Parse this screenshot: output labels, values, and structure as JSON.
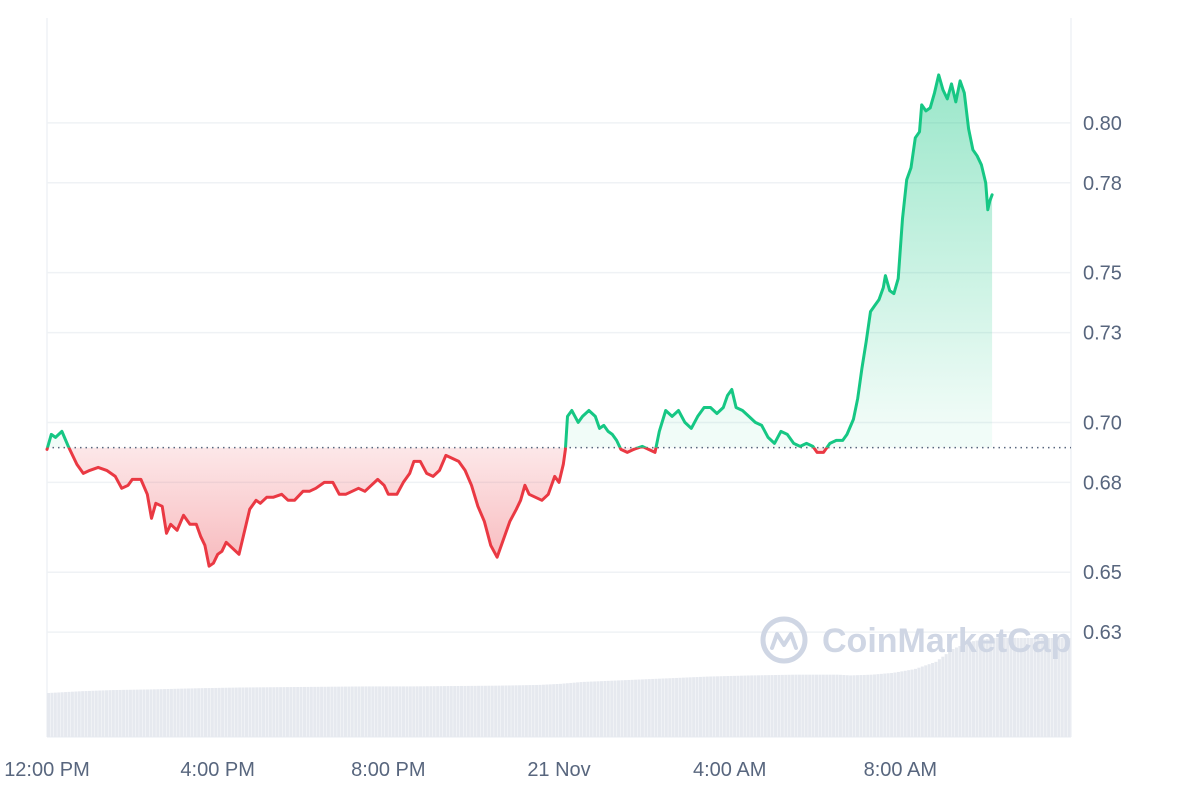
{
  "chart_data": {
    "type": "area",
    "baseline": 0.6916,
    "ylim": [
      0.595,
      0.835
    ],
    "y_ticks": [
      0.63,
      0.65,
      0.68,
      0.7,
      0.73,
      0.75,
      0.78,
      0.8
    ],
    "y_tick_labels": [
      "0.63",
      "0.65",
      "0.68",
      "0.70",
      "0.73",
      "0.75",
      "0.78",
      "0.80"
    ],
    "x_ticks": [
      {
        "label": "12:00 PM",
        "hour": 0
      },
      {
        "label": "4:00 PM",
        "hour": 4
      },
      {
        "label": "8:00 PM",
        "hour": 8
      },
      {
        "label": "21 Nov",
        "hour": 12
      },
      {
        "label": "4:00 AM",
        "hour": 16
      },
      {
        "label": "8:00 AM",
        "hour": 20
      }
    ],
    "xlim_hours": [
      0,
      24
    ],
    "series": [
      {
        "points": [
          [
            0.0,
            0.691
          ],
          [
            0.1,
            0.696
          ],
          [
            0.2,
            0.695
          ],
          [
            0.35,
            0.697
          ],
          [
            0.5,
            0.692
          ],
          [
            0.7,
            0.686
          ],
          [
            0.85,
            0.683
          ],
          [
            1.0,
            0.684
          ],
          [
            1.2,
            0.685
          ],
          [
            1.4,
            0.684
          ],
          [
            1.6,
            0.682
          ],
          [
            1.75,
            0.678
          ],
          [
            1.9,
            0.679
          ],
          [
            2.0,
            0.681
          ],
          [
            2.2,
            0.681
          ],
          [
            2.35,
            0.676
          ],
          [
            2.45,
            0.668
          ],
          [
            2.55,
            0.673
          ],
          [
            2.7,
            0.672
          ],
          [
            2.8,
            0.663
          ],
          [
            2.9,
            0.666
          ],
          [
            3.05,
            0.664
          ],
          [
            3.2,
            0.669
          ],
          [
            3.35,
            0.666
          ],
          [
            3.5,
            0.666
          ],
          [
            3.6,
            0.662
          ],
          [
            3.7,
            0.659
          ],
          [
            3.8,
            0.652
          ],
          [
            3.9,
            0.653
          ],
          [
            4.0,
            0.656
          ],
          [
            4.1,
            0.657
          ],
          [
            4.2,
            0.66
          ],
          [
            4.35,
            0.658
          ],
          [
            4.5,
            0.656
          ],
          [
            4.6,
            0.662
          ],
          [
            4.75,
            0.671
          ],
          [
            4.9,
            0.674
          ],
          [
            5.0,
            0.673
          ],
          [
            5.15,
            0.675
          ],
          [
            5.3,
            0.675
          ],
          [
            5.5,
            0.676
          ],
          [
            5.65,
            0.674
          ],
          [
            5.8,
            0.674
          ],
          [
            6.0,
            0.677
          ],
          [
            6.15,
            0.677
          ],
          [
            6.3,
            0.678
          ],
          [
            6.5,
            0.68
          ],
          [
            6.7,
            0.68
          ],
          [
            6.85,
            0.676
          ],
          [
            7.0,
            0.676
          ],
          [
            7.15,
            0.677
          ],
          [
            7.3,
            0.678
          ],
          [
            7.45,
            0.677
          ],
          [
            7.6,
            0.679
          ],
          [
            7.75,
            0.681
          ],
          [
            7.9,
            0.679
          ],
          [
            8.0,
            0.676
          ],
          [
            8.2,
            0.676
          ],
          [
            8.35,
            0.68
          ],
          [
            8.5,
            0.683
          ],
          [
            8.6,
            0.687
          ],
          [
            8.75,
            0.687
          ],
          [
            8.9,
            0.683
          ],
          [
            9.05,
            0.682
          ],
          [
            9.2,
            0.684
          ],
          [
            9.35,
            0.689
          ],
          [
            9.5,
            0.688
          ],
          [
            9.65,
            0.687
          ],
          [
            9.8,
            0.684
          ],
          [
            9.95,
            0.679
          ],
          [
            10.1,
            0.672
          ],
          [
            10.25,
            0.667
          ],
          [
            10.4,
            0.659
          ],
          [
            10.55,
            0.655
          ],
          [
            10.7,
            0.661
          ],
          [
            10.85,
            0.667
          ],
          [
            11.0,
            0.671
          ],
          [
            11.1,
            0.674
          ],
          [
            11.2,
            0.679
          ],
          [
            11.3,
            0.676
          ],
          [
            11.45,
            0.675
          ],
          [
            11.6,
            0.674
          ],
          [
            11.75,
            0.676
          ],
          [
            11.9,
            0.682
          ],
          [
            12.0,
            0.68
          ],
          [
            12.1,
            0.686
          ],
          [
            12.15,
            0.691
          ],
          [
            12.2,
            0.702
          ],
          [
            12.3,
            0.704
          ],
          [
            12.45,
            0.7
          ],
          [
            12.55,
            0.702
          ],
          [
            12.7,
            0.704
          ],
          [
            12.85,
            0.702
          ],
          [
            12.95,
            0.698
          ],
          [
            13.05,
            0.699
          ],
          [
            13.15,
            0.697
          ],
          [
            13.25,
            0.696
          ],
          [
            13.35,
            0.694
          ],
          [
            13.45,
            0.691
          ],
          [
            13.6,
            0.69
          ],
          [
            13.75,
            0.691
          ],
          [
            13.95,
            0.692
          ],
          [
            14.1,
            0.691
          ],
          [
            14.25,
            0.69
          ],
          [
            14.35,
            0.697
          ],
          [
            14.5,
            0.704
          ],
          [
            14.65,
            0.702
          ],
          [
            14.8,
            0.704
          ],
          [
            14.95,
            0.7
          ],
          [
            15.1,
            0.698
          ],
          [
            15.25,
            0.702
          ],
          [
            15.4,
            0.705
          ],
          [
            15.55,
            0.705
          ],
          [
            15.7,
            0.703
          ],
          [
            15.85,
            0.705
          ],
          [
            15.95,
            0.709
          ],
          [
            16.05,
            0.711
          ],
          [
            16.15,
            0.705
          ],
          [
            16.3,
            0.704
          ],
          [
            16.45,
            0.702
          ],
          [
            16.6,
            0.7
          ],
          [
            16.75,
            0.699
          ],
          [
            16.9,
            0.695
          ],
          [
            17.05,
            0.693
          ],
          [
            17.2,
            0.697
          ],
          [
            17.35,
            0.696
          ],
          [
            17.5,
            0.693
          ],
          [
            17.65,
            0.692
          ],
          [
            17.8,
            0.693
          ],
          [
            17.95,
            0.692
          ],
          [
            18.05,
            0.69
          ],
          [
            18.2,
            0.69
          ],
          [
            18.35,
            0.693
          ],
          [
            18.5,
            0.694
          ],
          [
            18.65,
            0.694
          ],
          [
            18.75,
            0.696
          ],
          [
            18.9,
            0.701
          ],
          [
            19.0,
            0.708
          ],
          [
            19.1,
            0.718
          ],
          [
            19.2,
            0.727
          ],
          [
            19.3,
            0.737
          ],
          [
            19.4,
            0.739
          ],
          [
            19.5,
            0.741
          ],
          [
            19.6,
            0.745
          ],
          [
            19.65,
            0.749
          ],
          [
            19.75,
            0.744
          ],
          [
            19.85,
            0.743
          ],
          [
            19.95,
            0.748
          ],
          [
            20.05,
            0.768
          ],
          [
            20.15,
            0.781
          ],
          [
            20.25,
            0.785
          ],
          [
            20.35,
            0.795
          ],
          [
            20.45,
            0.797
          ],
          [
            20.5,
            0.806
          ],
          [
            20.6,
            0.804
          ],
          [
            20.7,
            0.805
          ],
          [
            20.8,
            0.81
          ],
          [
            20.9,
            0.816
          ],
          [
            21.0,
            0.811
          ],
          [
            21.1,
            0.808
          ],
          [
            21.2,
            0.813
          ],
          [
            21.3,
            0.807
          ],
          [
            21.4,
            0.814
          ],
          [
            21.5,
            0.81
          ],
          [
            21.6,
            0.798
          ],
          [
            21.7,
            0.791
          ],
          [
            21.8,
            0.789
          ],
          [
            21.9,
            0.786
          ],
          [
            22.0,
            0.78
          ],
          [
            22.05,
            0.771
          ],
          [
            22.1,
            0.774
          ],
          [
            22.15,
            0.776
          ]
        ]
      }
    ],
    "volume": {
      "points": [
        [
          0.0,
          0.012
        ],
        [
          0.8,
          0.0125
        ],
        [
          1.5,
          0.0128
        ],
        [
          2.5,
          0.013
        ],
        [
          3.5,
          0.0133
        ],
        [
          4.5,
          0.0135
        ],
        [
          5.5,
          0.0136
        ],
        [
          6.5,
          0.0137
        ],
        [
          7.5,
          0.0138
        ],
        [
          8.5,
          0.0138
        ],
        [
          9.5,
          0.0139
        ],
        [
          10.5,
          0.014
        ],
        [
          11.5,
          0.0142
        ],
        [
          12.0,
          0.0145
        ],
        [
          12.5,
          0.015
        ],
        [
          13.5,
          0.0155
        ],
        [
          14.5,
          0.016
        ],
        [
          15.5,
          0.0165
        ],
        [
          16.5,
          0.0168
        ],
        [
          17.5,
          0.017
        ],
        [
          18.5,
          0.017
        ],
        [
          18.8,
          0.0168
        ],
        [
          19.3,
          0.017
        ],
        [
          19.8,
          0.0175
        ],
        [
          20.3,
          0.0185
        ],
        [
          20.8,
          0.0205
        ],
        [
          21.2,
          0.024
        ],
        [
          21.6,
          0.026
        ],
        [
          22.15,
          0.027
        ]
      ]
    },
    "colors": {
      "up": "#16c784",
      "down": "#ea3943",
      "up_fill": "#16c784",
      "down_fill": "#ea3943",
      "grid": "#eff2f5",
      "axis_text": "#58667e",
      "baseline": "#58667e",
      "volume": "#e6e9ef"
    }
  },
  "watermark": {
    "text": "CoinMarketCap",
    "icon": "coinmarketcap-logo-icon"
  }
}
